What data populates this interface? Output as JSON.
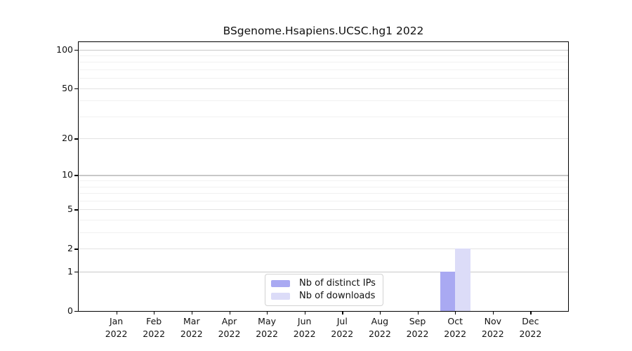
{
  "chart_data": {
    "type": "bar",
    "title": "BSgenome.Hsapiens.UCSC.hg1 2022",
    "categories": [
      "Jan",
      "Feb",
      "Mar",
      "Apr",
      "May",
      "Jun",
      "Jul",
      "Aug",
      "Sep",
      "Oct",
      "Nov",
      "Dec"
    ],
    "category_year": "2022",
    "series": [
      {
        "name": "Nb of distinct IPs",
        "color": "#a9a9f2",
        "values": [
          0,
          0,
          0,
          0,
          0,
          0,
          0,
          0,
          0,
          1,
          0,
          0
        ]
      },
      {
        "name": "Nb of downloads",
        "color": "#dcdcf8",
        "values": [
          0,
          0,
          0,
          0,
          0,
          0,
          0,
          0,
          0,
          2,
          0,
          0
        ]
      }
    ],
    "xlabel": "",
    "ylabel": "",
    "yscale": "log10(1+y)",
    "ylim": [
      0,
      114
    ],
    "yticks": [
      0,
      1,
      2,
      5,
      10,
      20,
      50,
      100
    ],
    "grid": {
      "major_levels": [
        1,
        10,
        100
      ],
      "mid_levels": [
        2,
        5,
        20,
        50
      ],
      "minor_levels": [
        3,
        4,
        6,
        7,
        8,
        9,
        30,
        40,
        60,
        70,
        80,
        90
      ]
    },
    "grid_colors": {
      "major": "#c8c8c8",
      "mid": "#e3e3e3",
      "minor": "#f1f1f1"
    },
    "legend_position": "inside-bottom-center",
    "bar_values_note": "Oct 2022: distinct IPs = 1, downloads = 2; all other months 0"
  }
}
